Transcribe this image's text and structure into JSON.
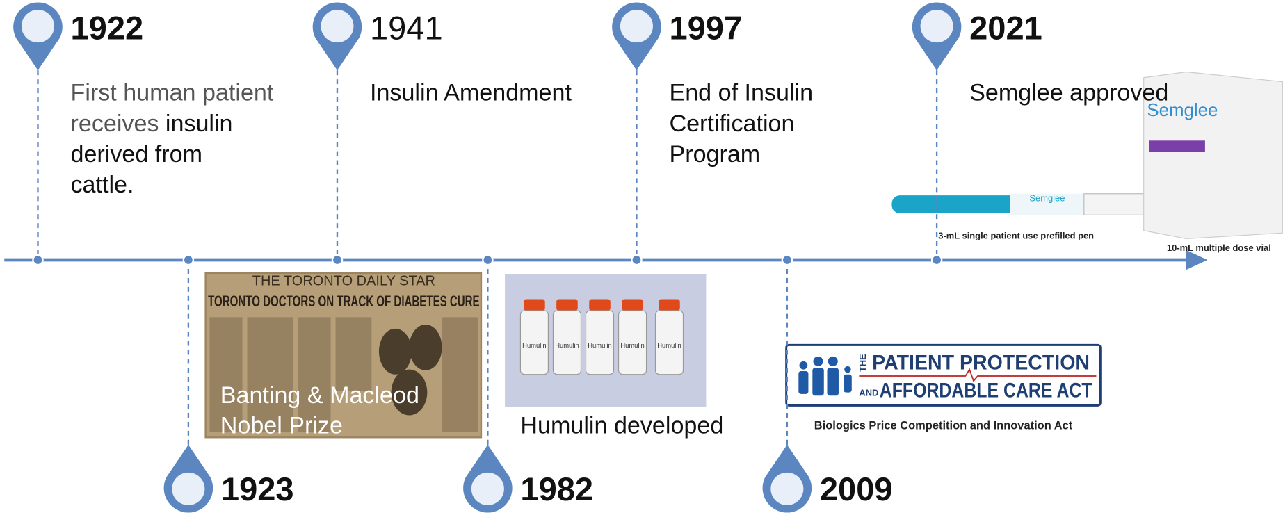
{
  "top_events": [
    {
      "year": "1922",
      "text": [
        [
          "First human patient"
        ],
        [
          "receives",
          "insulin"
        ],
        [
          "derived from"
        ],
        [
          "cattle."
        ]
      ]
    },
    {
      "year": "1941",
      "text": [
        [
          "Insulin Amendment"
        ]
      ]
    },
    {
      "year": "1997",
      "text": [
        [
          "End of Insulin"
        ],
        [
          "Certification"
        ],
        [
          "Program"
        ]
      ]
    },
    {
      "year": "2021",
      "text": [
        [
          "Semglee approved"
        ]
      ]
    }
  ],
  "bottom_events": [
    {
      "year": "1923",
      "caption": [
        "Banting & Macleod",
        "Nobel Prize"
      ]
    },
    {
      "year": "1982",
      "caption": [
        "Humulin developed"
      ]
    },
    {
      "year": "2009"
    }
  ],
  "images": {
    "newspaper": {
      "masthead": "THE TORONTO DAILY STAR",
      "headline": "TORONTO DOCTORS ON TRACK OF DIABETES CURE"
    },
    "vials": {
      "label": "Humulin"
    },
    "semglee": {
      "brand": "Semglee",
      "pen_caption": "3-mL single patient use prefilled pen",
      "vial_caption": "10-mL multiple dose vial"
    },
    "aca": {
      "the": "THE",
      "line1": "PATIENT PROTECTION",
      "and": "AND",
      "line2": "AFFORDABLE CARE ACT",
      "caption": "Biologics Price Competition and Innovation Act"
    }
  }
}
